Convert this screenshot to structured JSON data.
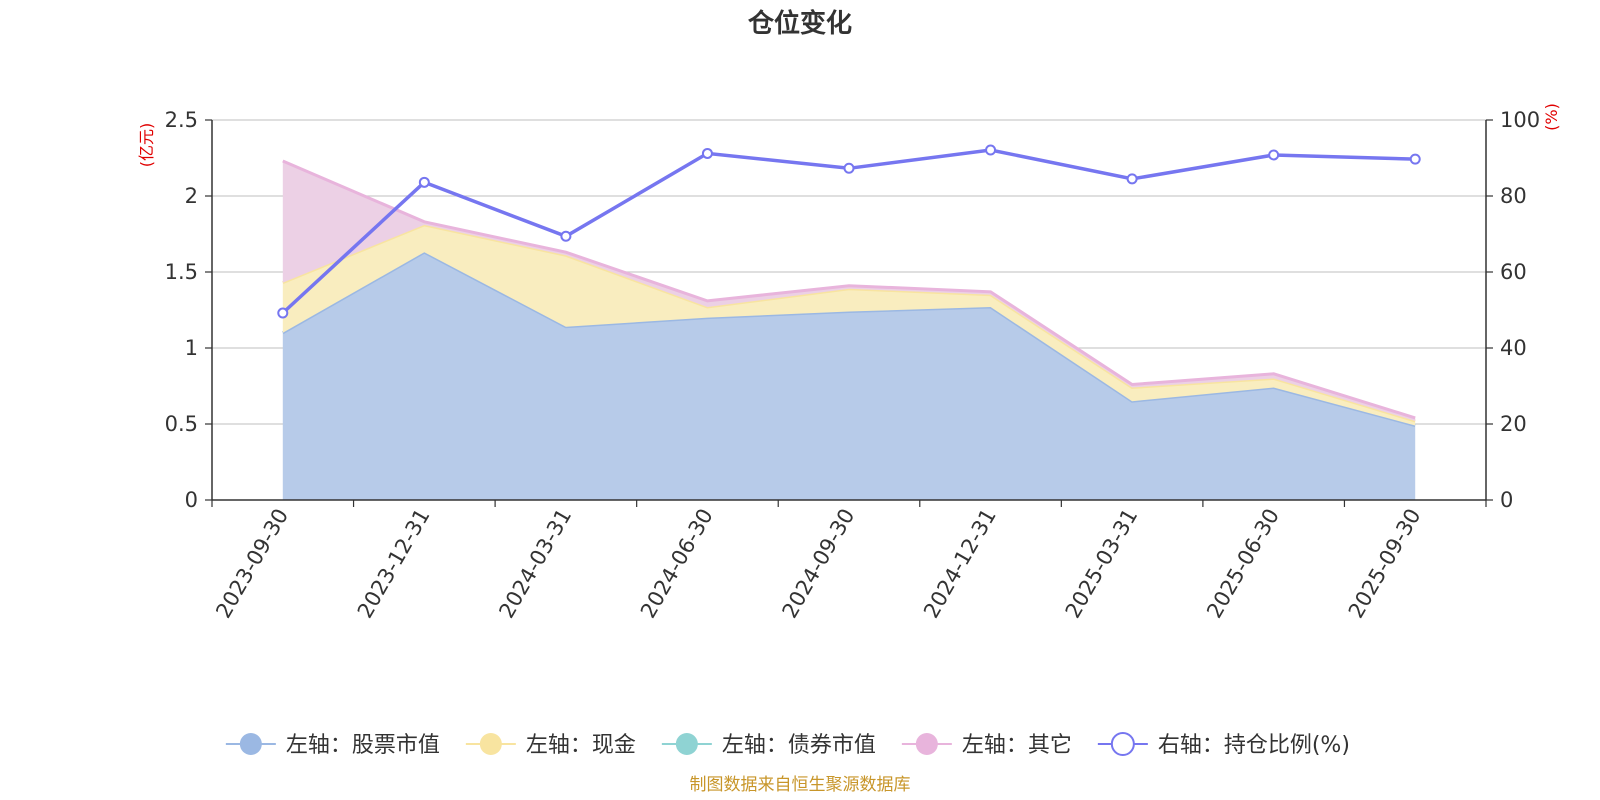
{
  "chart_data": {
    "type": "area",
    "title": "仓位变化",
    "categories": [
      "2023-09-30",
      "2023-12-31",
      "2024-03-31",
      "2024-06-30",
      "2024-09-30",
      "2024-12-31",
      "2025-03-31",
      "2025-06-30",
      "2025-09-30"
    ],
    "left_axis": {
      "unit": "(亿元)",
      "min": 0,
      "max": 2.5,
      "ticks": [
        "0",
        "0.5",
        "1",
        "1.5",
        "2",
        "2.5"
      ],
      "color": "#e00000"
    },
    "right_axis": {
      "unit": "(%)",
      "min": 0,
      "max": 100,
      "ticks": [
        "0",
        "20",
        "40",
        "60",
        "80",
        "100"
      ],
      "color": "#e00000"
    },
    "stacked_series": [
      {
        "name": "左轴：股票市值",
        "color": "#9bb8e3",
        "fill": "#b7cbe9",
        "values": [
          1.1,
          1.63,
          1.14,
          1.2,
          1.24,
          1.27,
          0.65,
          0.74,
          0.49
        ]
      },
      {
        "name": "左轴：现金",
        "color": "#f8e4a0",
        "fill": "#f9edbf",
        "values": [
          0.33,
          0.18,
          0.47,
          0.07,
          0.15,
          0.08,
          0.09,
          0.06,
          0.03
        ]
      },
      {
        "name": "左轴：债券市值",
        "color": "#8fd3d3",
        "fill": "#b4e3e3",
        "values": [
          0,
          0,
          0,
          0,
          0,
          0,
          0,
          0,
          0
        ]
      },
      {
        "name": "左轴：其它",
        "color": "#e8b4dc",
        "fill": "#ecd0e5",
        "values": [
          0.8,
          0.02,
          0.02,
          0.04,
          0.02,
          0.02,
          0.02,
          0.03,
          0.02
        ]
      }
    ],
    "line_series": {
      "name": "右轴：持仓比例(%)",
      "color": "#7676f0",
      "values": [
        49.2,
        83.6,
        69.4,
        91.2,
        87.3,
        92.1,
        84.5,
        90.8,
        89.7
      ]
    },
    "legend_position": "bottom-center",
    "grid": true
  },
  "source_text": "制图数据来自恒生聚源数据库",
  "source_color": "#c8962a"
}
